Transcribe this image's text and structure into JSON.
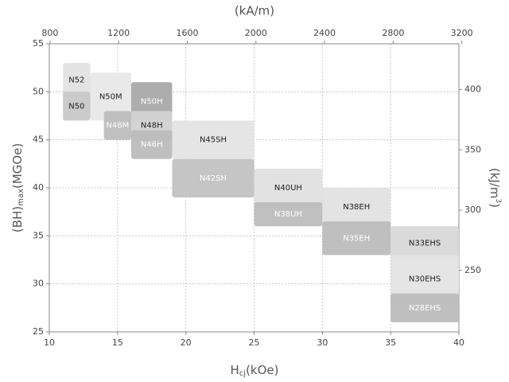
{
  "chart_data": {
    "type": "range-box",
    "xlabel": {
      "main": "H",
      "sub": "cj",
      "unit": "(kOe)"
    },
    "ylabel": {
      "main": "(BH)",
      "sub": "max",
      "unit": "(MGOe)"
    },
    "x2label": "(kA/m)",
    "y2label": {
      "main": "(kJ/m",
      "sup": "3",
      "end": ")"
    },
    "xlim": [
      10,
      40
    ],
    "xticks": [
      10,
      15,
      20,
      25,
      30,
      35,
      40
    ],
    "ylim": [
      25,
      55
    ],
    "yticks": [
      25,
      30,
      35,
      40,
      45,
      50,
      55
    ],
    "x2lim": [
      796,
      3183
    ],
    "x2ticks": [
      800,
      1200,
      1600,
      2000,
      2400,
      2800,
      3200
    ],
    "y2lim": [
      199,
      438
    ],
    "y2ticks": [
      250,
      300,
      350,
      400
    ],
    "grid": true,
    "boxes": [
      {
        "name": "N52",
        "x": [
          11,
          13
        ],
        "y": [
          49.5,
          53
        ],
        "color": "#e2e2e2"
      },
      {
        "name": "N50",
        "x": [
          11,
          13
        ],
        "y": [
          47,
          50
        ],
        "color": "#c8c8c8"
      },
      {
        "name": "N50M",
        "x": [
          13,
          16
        ],
        "y": [
          47,
          52
        ],
        "color": "#e8e8e8"
      },
      {
        "name": "N48M",
        "x": [
          14,
          16
        ],
        "y": [
          45,
          48
        ],
        "color": "#bdbdbd"
      },
      {
        "name": "N50H",
        "x": [
          16,
          19
        ],
        "y": [
          47,
          51
        ],
        "color": "#a9a9a9"
      },
      {
        "name": "N48H",
        "x": [
          16,
          19
        ],
        "y": [
          45,
          48
        ],
        "color": "#d2d2d2"
      },
      {
        "name": "N46H",
        "x": [
          16,
          19
        ],
        "y": [
          43,
          46
        ],
        "color": "#bcbcbc"
      },
      {
        "name": "N45SH",
        "x": [
          19,
          25
        ],
        "y": [
          43,
          47
        ],
        "color": "#e4e4e4"
      },
      {
        "name": "N42SH",
        "x": [
          19,
          25
        ],
        "y": [
          39,
          43
        ],
        "color": "#c2c2c2"
      },
      {
        "name": "N40UH",
        "x": [
          25,
          30
        ],
        "y": [
          38,
          42
        ],
        "color": "#e0e0e0"
      },
      {
        "name": "N38UH",
        "x": [
          25,
          30
        ],
        "y": [
          36,
          38.5
        ],
        "color": "#bdbdbd"
      },
      {
        "name": "N38EH",
        "x": [
          30,
          35
        ],
        "y": [
          36,
          40
        ],
        "color": "#e2e2e2"
      },
      {
        "name": "N35EH",
        "x": [
          30,
          35
        ],
        "y": [
          33,
          36.5
        ],
        "color": "#bcbcbc"
      },
      {
        "name": "N33EHS",
        "x": [
          35,
          40
        ],
        "y": [
          32.5,
          36
        ],
        "color": "#d8d8d8"
      },
      {
        "name": "N30EHS",
        "x": [
          35,
          40
        ],
        "y": [
          28,
          33
        ],
        "color": "#e4e4e4"
      },
      {
        "name": "N28EHS",
        "x": [
          35,
          40
        ],
        "y": [
          26,
          29
        ],
        "color": "#bcbcbc"
      }
    ]
  }
}
